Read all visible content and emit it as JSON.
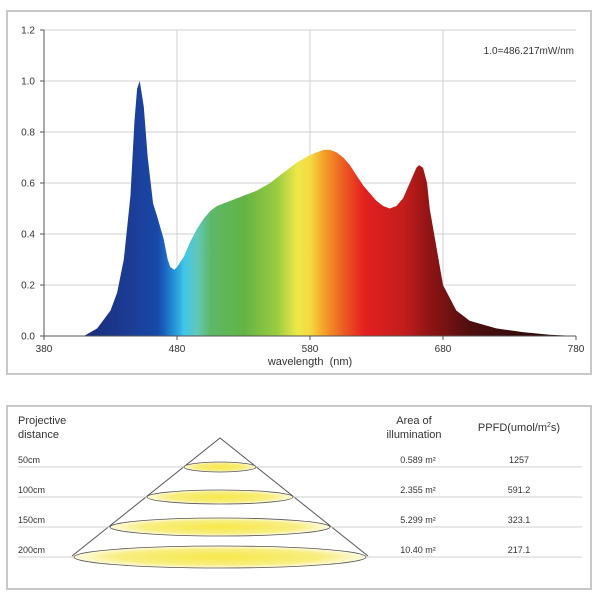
{
  "chart_data": {
    "type": "area",
    "annotation": "1.0=486.217mW/nm",
    "xlabel": "wavelength  (nm)",
    "ylabel": "",
    "xlim": [
      380,
      780
    ],
    "ylim": [
      0,
      1.2
    ],
    "xticks": [
      380,
      480,
      580,
      680,
      780
    ],
    "xtick_labels": [
      "380",
      "480",
      "580",
      "680",
      "780"
    ],
    "yticks": [
      0,
      0.2,
      0.4,
      0.6,
      0.8,
      1.0,
      1.2
    ],
    "ytick_labels": [
      "0.0",
      "0.2",
      "0.4",
      "0.6",
      "0.8",
      "1.0",
      "1.2"
    ],
    "grid": true,
    "x": [
      410,
      420,
      430,
      435,
      440,
      445,
      448,
      450,
      452,
      455,
      458,
      462,
      465,
      470,
      473,
      475,
      478,
      480,
      485,
      490,
      495,
      500,
      505,
      510,
      520,
      530,
      540,
      550,
      560,
      570,
      580,
      590,
      595,
      600,
      605,
      610,
      615,
      620,
      625,
      630,
      635,
      640,
      645,
      650,
      655,
      660,
      662,
      665,
      668,
      670,
      675,
      680,
      690,
      700,
      720,
      740,
      760,
      780
    ],
    "values": [
      0.0,
      0.03,
      0.1,
      0.17,
      0.3,
      0.55,
      0.84,
      0.97,
      1.0,
      0.9,
      0.7,
      0.52,
      0.47,
      0.38,
      0.3,
      0.27,
      0.26,
      0.27,
      0.31,
      0.37,
      0.42,
      0.46,
      0.49,
      0.51,
      0.53,
      0.55,
      0.57,
      0.6,
      0.64,
      0.68,
      0.71,
      0.73,
      0.73,
      0.72,
      0.7,
      0.67,
      0.63,
      0.59,
      0.56,
      0.53,
      0.51,
      0.5,
      0.51,
      0.54,
      0.6,
      0.66,
      0.67,
      0.66,
      0.6,
      0.5,
      0.35,
      0.2,
      0.1,
      0.06,
      0.03,
      0.015,
      0.005,
      0.0
    ]
  },
  "table": {
    "headers": {
      "distance_line1": "Projective",
      "distance_line2": "distance",
      "area_line1": "Area of",
      "area_line2": "illumination",
      "ppfd_main": "PPFD(umol/m",
      "ppfd_sup": "2",
      "ppfd_end": "s)"
    },
    "rows": [
      {
        "distance": "50cm",
        "area": "0.589 m²",
        "ppfd": "1257"
      },
      {
        "distance": "100cm",
        "area": "2.355 m²",
        "ppfd": "591.2"
      },
      {
        "distance": "150cm",
        "area": "5.299 m²",
        "ppfd": "323.1"
      },
      {
        "distance": "200cm",
        "area": "10.40 m²",
        "ppfd": "217.1"
      }
    ]
  },
  "colors": {
    "grid": "#d0d0d0",
    "ellipse_center": "#f6e84a",
    "ellipse_edge": "#fffbe0",
    "line": "#555555"
  }
}
